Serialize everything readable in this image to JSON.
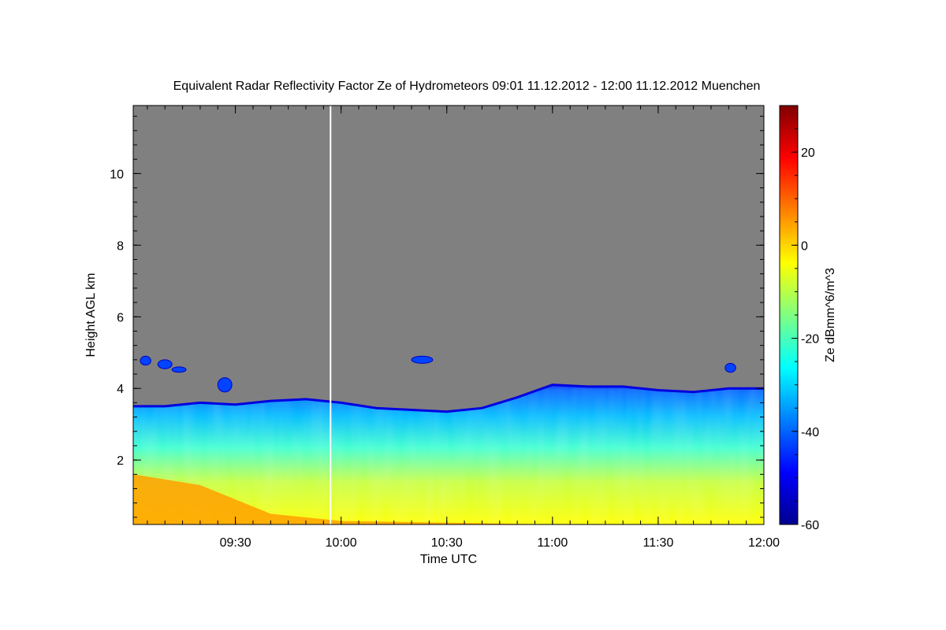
{
  "chart_data": {
    "type": "heatmap",
    "title": "Equivalent Radar Reflectivity Factor Ze of Hydrometeors   09:01 11.12.2012 - 12:00 11.12.2012 Muenchen",
    "xlabel": "Time UTC",
    "ylabel": "Height AGL km",
    "x_time_range": [
      "09:01",
      "12:00"
    ],
    "x_ticks": [
      "09:30",
      "10:00",
      "10:30",
      "11:00",
      "11:30",
      "12:00"
    ],
    "ylim": [
      0.2,
      11.9
    ],
    "y_ticks": [
      2,
      4,
      6,
      8,
      10
    ],
    "colorbar": {
      "label": "Ze dBmm^6/m^3",
      "range": [
        -60,
        30
      ],
      "ticks": [
        -60,
        -40,
        -20,
        0,
        20
      ],
      "colormap": [
        "#00008f",
        "#0000ff",
        "#0080ff",
        "#00ffff",
        "#80ff80",
        "#ffff00",
        "#ff8000",
        "#ff0000",
        "#800000"
      ]
    },
    "background_color": "#808080",
    "missing_data_time": "09:57",
    "cloud_top_km": [
      {
        "t": "09:01",
        "h": 3.5
      },
      {
        "t": "09:10",
        "h": 3.5
      },
      {
        "t": "09:20",
        "h": 3.6
      },
      {
        "t": "09:30",
        "h": 3.55
      },
      {
        "t": "09:40",
        "h": 3.65
      },
      {
        "t": "09:50",
        "h": 3.7
      },
      {
        "t": "10:00",
        "h": 3.6
      },
      {
        "t": "10:10",
        "h": 3.45
      },
      {
        "t": "10:20",
        "h": 3.4
      },
      {
        "t": "10:30",
        "h": 3.35
      },
      {
        "t": "10:40",
        "h": 3.45
      },
      {
        "t": "10:50",
        "h": 3.75
      },
      {
        "t": "11:00",
        "h": 4.1
      },
      {
        "t": "11:10",
        "h": 4.05
      },
      {
        "t": "11:20",
        "h": 4.05
      },
      {
        "t": "11:30",
        "h": 3.95
      },
      {
        "t": "11:40",
        "h": 3.9
      },
      {
        "t": "11:50",
        "h": 4.0
      },
      {
        "t": "12:00",
        "h": 4.0
      }
    ],
    "high_reflectivity_top_km": [
      {
        "t": "09:01",
        "h": 1.6
      },
      {
        "t": "09:20",
        "h": 1.3
      },
      {
        "t": "09:40",
        "h": 0.5
      },
      {
        "t": "10:00",
        "h": 0.3
      },
      {
        "t": "11:00",
        "h": 0.2
      },
      {
        "t": "12:00",
        "h": 0.2
      }
    ],
    "cloud_patches": [
      {
        "t0": "09:03",
        "t1": "09:06",
        "h0": 4.65,
        "h1": 4.9
      },
      {
        "t0": "09:08",
        "t1": "09:12",
        "h0": 4.55,
        "h1": 4.8
      },
      {
        "t0": "09:12",
        "t1": "09:16",
        "h0": 4.45,
        "h1": 4.6
      },
      {
        "t0": "09:25",
        "t1": "09:29",
        "h0": 3.9,
        "h1": 4.3
      },
      {
        "t0": "10:20",
        "t1": "10:26",
        "h0": 4.7,
        "h1": 4.9
      },
      {
        "t0": "11:49",
        "t1": "11:52",
        "h0": 4.45,
        "h1": 4.7
      }
    ]
  }
}
